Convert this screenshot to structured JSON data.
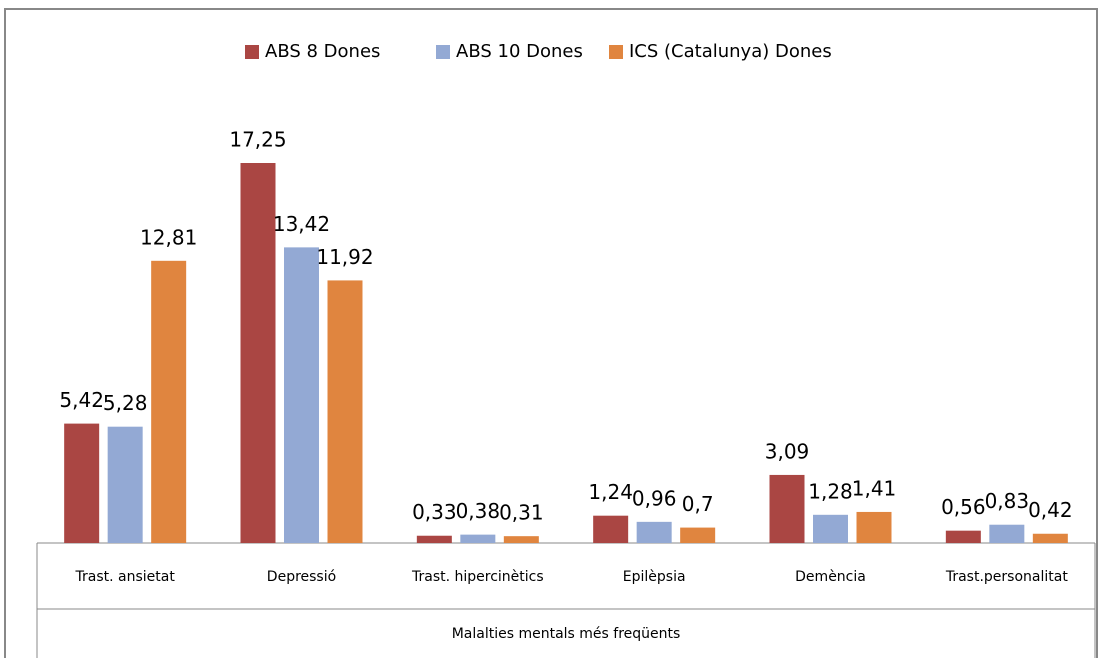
{
  "chart_data": {
    "type": "bar",
    "categories": [
      "Trast. ansietat",
      "Depressió",
      "Trast. hipercinètics",
      "Epilèpsia",
      "Demència",
      "Trast.personalitat"
    ],
    "xlabel": "Malalties  mentals més freqüents",
    "series": [
      {
        "name": "ABS 8 Dones",
        "color": "#aa4643",
        "values": [
          5.42,
          17.25,
          0.33,
          1.24,
          3.09,
          0.56
        ],
        "value_labels": [
          "5,42",
          "17,25",
          "0,33",
          "1,24",
          "3,09",
          "0,56"
        ]
      },
      {
        "name": "ABS 10 Dones",
        "color": "#93a9d4",
        "values": [
          5.28,
          13.42,
          0.38,
          0.96,
          1.28,
          0.83
        ],
        "value_labels": [
          "5,28",
          "13,42",
          "0,38",
          "0,96",
          "1,28",
          "0,83"
        ]
      },
      {
        "name": "ICS (Catalunya) Dones",
        "color": "#e0853f",
        "values": [
          12.81,
          11.92,
          0.31,
          0.7,
          1.41,
          0.42
        ],
        "value_labels": [
          "12,81",
          "11,92",
          "0,31",
          "0,7",
          "1,41",
          "0,42"
        ]
      }
    ],
    "legend": "top"
  }
}
